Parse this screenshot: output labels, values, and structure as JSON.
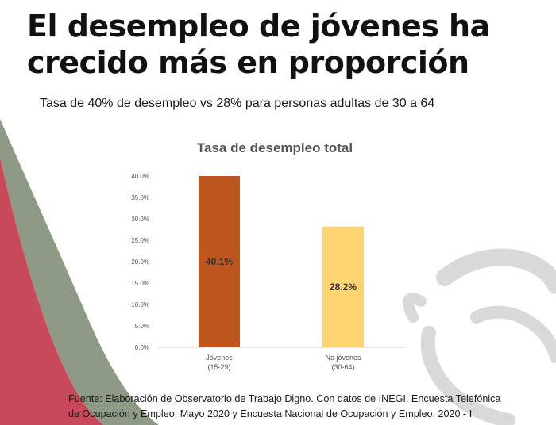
{
  "slide": {
    "title_line1": "El desempleo de jóvenes ha",
    "title_line2": "crecido más en proporción",
    "subtitle": "Tasa de 40% de desempleo vs 28% para personas adultas de 30 a 64",
    "source_line1": "Fuente: Elaboración de Observatorio de Trabajo Digno. Con datos de INEGI. Encuesta Telefónica",
    "source_line2": "de Ocupación y Empleo, Mayo 2020 y Encuesta Nacional de Ocupación y Empleo. 2020 - I"
  },
  "colors": {
    "deco_red": "#c8495a",
    "deco_green": "#8f9a86",
    "deco_grey": "#d6d6d6"
  },
  "chart_data": {
    "type": "bar",
    "title": "Tasa de desempleo total",
    "categories": [
      [
        "Jóvenes",
        "(15-29)"
      ],
      [
        "No jóvenes",
        "(30-64)"
      ]
    ],
    "values": [
      40.1,
      28.2
    ],
    "value_labels": [
      "40.1%",
      "28.2%"
    ],
    "colors": [
      "#c0561f",
      "#fcd572"
    ],
    "ylim": [
      0,
      40
    ],
    "y_ticks": [
      {
        "value": 0,
        "label": "0.0%"
      },
      {
        "value": 5,
        "label": "5.0%"
      },
      {
        "value": 10,
        "label": "10.0%"
      },
      {
        "value": 15,
        "label": "15.0%"
      },
      {
        "value": 20,
        "label": "20.0%"
      },
      {
        "value": 25,
        "label": "25.0%"
      },
      {
        "value": 30,
        "label": "30.0%"
      },
      {
        "value": 35,
        "label": "35.0%"
      },
      {
        "value": 40,
        "label": "40.0%"
      }
    ],
    "xlabel": "",
    "ylabel": "",
    "grid": false,
    "legend": "none"
  }
}
